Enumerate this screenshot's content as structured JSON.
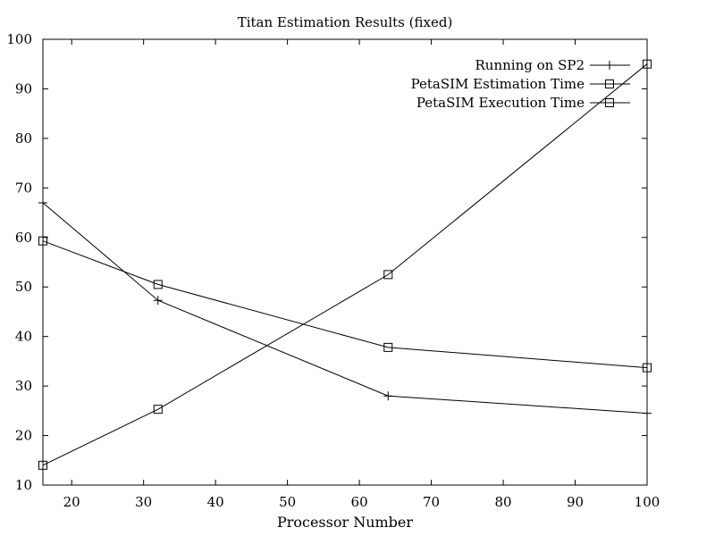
{
  "chart_data": {
    "type": "line",
    "title": "Titan Estimation Results (fixed)",
    "xlabel": "Processor Number",
    "ylabel": "",
    "xlim": [
      16,
      100
    ],
    "ylim": [
      10,
      100
    ],
    "xticks": [
      20,
      30,
      40,
      50,
      60,
      70,
      80,
      90,
      100
    ],
    "yticks": [
      10,
      20,
      30,
      40,
      50,
      60,
      70,
      80,
      90,
      100
    ],
    "grid": false,
    "legend_position": "top-right",
    "x": [
      16,
      32,
      64,
      100
    ],
    "series": [
      {
        "name": "Running on SP2",
        "marker": "plus",
        "values": [
          67,
          47.3,
          28,
          24.5
        ]
      },
      {
        "name": "PetaSIM Estimation Time",
        "marker": "square",
        "values": [
          59.3,
          50.5,
          37.8,
          33.7
        ]
      },
      {
        "name": "PetaSIM Execution Time",
        "marker": "square",
        "values": [
          14,
          25.3,
          52.5,
          95
        ]
      }
    ]
  }
}
